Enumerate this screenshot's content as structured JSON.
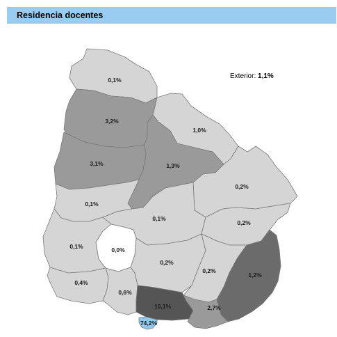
{
  "title": "Residencia docentes",
  "exterior": {
    "label": "Exterior:",
    "value": "1,1%"
  },
  "colors": {
    "header": "#99ccf0",
    "light": "#d5d5d5",
    "medium": "#9a9a9a",
    "dark": "#6b6b6b",
    "darkest": "#555555",
    "highlight": "#8fc8ec"
  },
  "regions": [
    {
      "id": "artigas",
      "value": "0,1%"
    },
    {
      "id": "rivera",
      "value": "1,0%"
    },
    {
      "id": "salto",
      "value": "3,2%"
    },
    {
      "id": "paysandu",
      "value": "3,1%"
    },
    {
      "id": "tacuarembo",
      "value": "1,3%"
    },
    {
      "id": "cerro-largo",
      "value": "0,2%"
    },
    {
      "id": "rio-negro",
      "value": "0,1%"
    },
    {
      "id": "durazno",
      "value": "0,1%"
    },
    {
      "id": "treinta-y-tres",
      "value": "0,2%"
    },
    {
      "id": "soriano",
      "value": "0,1%"
    },
    {
      "id": "flores",
      "value": "0,0%"
    },
    {
      "id": "florida",
      "value": "0,2%"
    },
    {
      "id": "lavalleja",
      "value": "0,2%"
    },
    {
      "id": "rocha",
      "value": "1,2%"
    },
    {
      "id": "colonia",
      "value": "0,4%"
    },
    {
      "id": "san-jose",
      "value": "0,6%"
    },
    {
      "id": "canelones",
      "value": "10,1%"
    },
    {
      "id": "maldonado",
      "value": "2,7%"
    },
    {
      "id": "montevideo",
      "value": "74,2%"
    }
  ]
}
